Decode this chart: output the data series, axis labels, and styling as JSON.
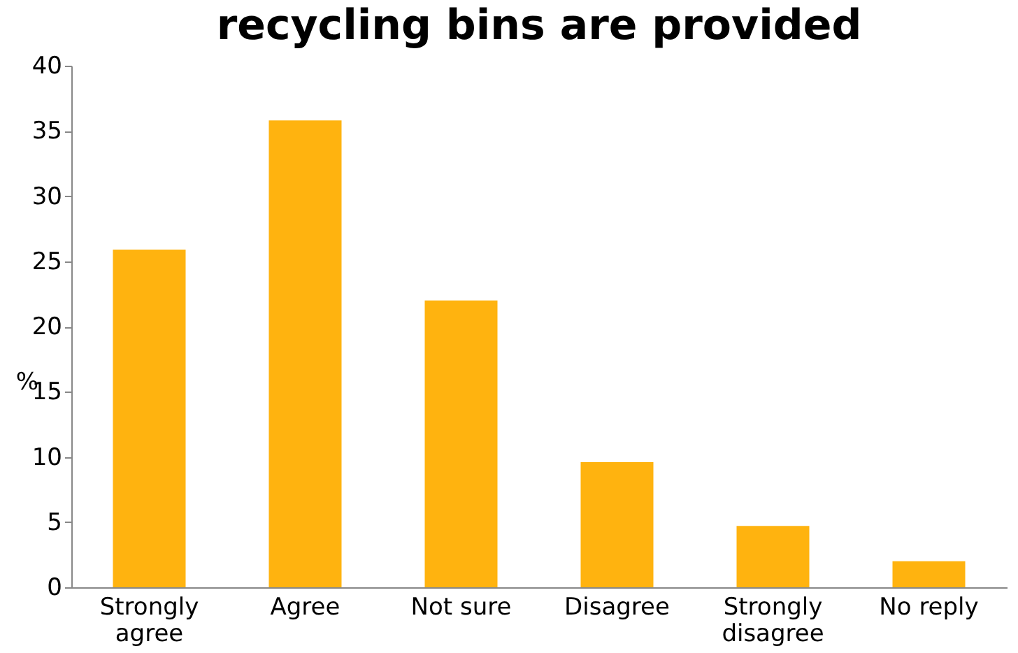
{
  "chart_data": {
    "type": "bar",
    "title": "recycling bins are provided",
    "ylabel": "%",
    "categories": [
      "Strongly agree",
      "Agree",
      "Not sure",
      "Disagree",
      "Strongly disagree",
      "No reply"
    ],
    "values": [
      25.9,
      35.8,
      22,
      9.6,
      4.7,
      2
    ],
    "color": "#ffb30f",
    "ylim": [
      0,
      40
    ],
    "yticks": [
      0,
      5,
      10,
      15,
      20,
      25,
      30,
      35,
      40
    ],
    "grid": false
  }
}
